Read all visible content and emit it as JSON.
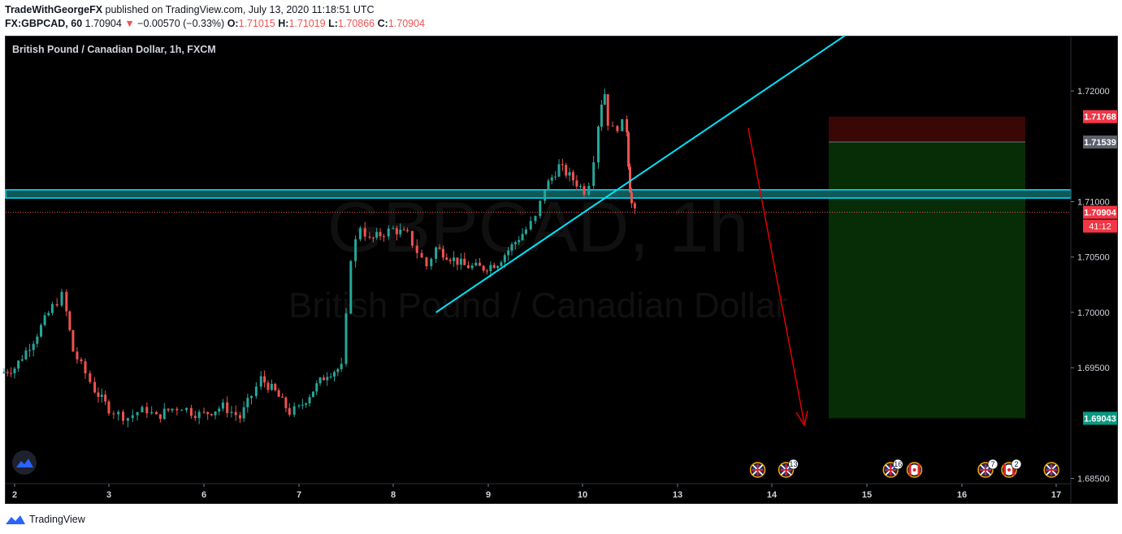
{
  "header": {
    "publisher": "TradeWithGeorgeFX",
    "published_text": "published on TradingView.com, July 13, 2020 11:18:51 UTC",
    "symbol": "FX:GBPCAD, 60",
    "last": "1.70904",
    "change": "−0.00570 (−0.33%)",
    "o_label": "O:",
    "o_value": "1.71015",
    "h_label": "H:",
    "h_value": "1.71019",
    "l_label": "L:",
    "l_value": "1.70866",
    "c_label": "C:",
    "c_value": "1.70904"
  },
  "chart": {
    "legend_title": "British Pound / Canadian Dollar, 1h, FXCM",
    "watermark_symbol": "GBPCAD, 1h",
    "watermark_name": "British Pound / Canadian Dollar",
    "countdown": "41:12"
  },
  "footer": {
    "brand": "TradingView"
  },
  "colors": {
    "up": "#26a69a",
    "down": "#ef5350",
    "trendline": "#00e5ff",
    "zone_fill": "#0e5a5a",
    "arrow": "#e00000",
    "stop_fill": "#3a0707",
    "target_fill": "#062d06",
    "price_line": "#ef5350"
  },
  "chart_data": {
    "type": "candlestick",
    "symbol": "GBPCAD",
    "interval": "1h",
    "y_ticks": [
      "1.72000",
      "1.71000",
      "1.70500",
      "1.70000",
      "1.69500",
      "1.68500"
    ],
    "x_ticks": [
      "2",
      "3",
      "6",
      "7",
      "8",
      "9",
      "10",
      "13",
      "14",
      "15",
      "16",
      "17"
    ],
    "price_badges": [
      {
        "label": "1.71768",
        "value": 1.71768,
        "color": "#f23645"
      },
      {
        "label": "1.71539",
        "value": 1.71539,
        "color": "#5d606b"
      },
      {
        "label": "1.70904",
        "value": 1.70904,
        "color": "#f23645"
      },
      {
        "label": "1.69043",
        "value": 1.69043,
        "color": "#089981"
      }
    ],
    "current_price": 1.70904,
    "resistance_zone": [
      1.7104,
      1.711
    ],
    "trade_box": {
      "entry": 1.71539,
      "stop": 1.71768,
      "target": 1.69043
    },
    "trendline": [
      {
        "t": 8.45,
        "p": 1.7
      },
      {
        "t": 13.3,
        "p": 1.7165
      }
    ],
    "event_markers": [
      {
        "t": 13.85,
        "flag": "uk",
        "count": ""
      },
      {
        "t": 14.15,
        "flag": "uk",
        "count": "13"
      },
      {
        "t": 15.25,
        "flag": "uk",
        "count": "16"
      },
      {
        "t": 15.5,
        "flag": "ca",
        "count": ""
      },
      {
        "t": 16.25,
        "flag": "uk",
        "count": "7"
      },
      {
        "t": 16.5,
        "flag": "ca",
        "count": "2"
      },
      {
        "t": 16.95,
        "flag": "uk",
        "count": ""
      }
    ],
    "close_path": [
      [
        1.85,
        1.6945
      ],
      [
        2.0,
        1.695
      ],
      [
        2.2,
        1.6975
      ],
      [
        2.4,
        1.7005
      ],
      [
        2.5,
        1.7015
      ],
      [
        2.55,
        1.7
      ],
      [
        2.62,
        1.6965
      ],
      [
        2.75,
        1.6945
      ],
      [
        2.85,
        1.693
      ],
      [
        3.0,
        1.6913
      ],
      [
        3.3,
        1.6908
      ],
      [
        3.6,
        1.6905
      ],
      [
        3.9,
        1.691
      ],
      [
        4.2,
        1.6912
      ],
      [
        4.5,
        1.6905
      ],
      [
        4.75,
        1.691
      ],
      [
        5.0,
        1.6913
      ],
      [
        5.3,
        1.6915
      ],
      [
        5.6,
        1.691
      ],
      [
        5.85,
        1.6908
      ],
      [
        6.0,
        1.6908
      ],
      [
        6.2,
        1.6915
      ],
      [
        6.38,
        1.6905
      ],
      [
        6.5,
        1.6925
      ],
      [
        6.6,
        1.694
      ],
      [
        6.75,
        1.6928
      ],
      [
        6.9,
        1.691
      ],
      [
        7.0,
        1.6913
      ],
      [
        7.15,
        1.693
      ],
      [
        7.3,
        1.6945
      ],
      [
        7.45,
        1.695
      ],
      [
        7.5,
        1.6995
      ],
      [
        7.55,
        1.705
      ],
      [
        7.65,
        1.7078
      ],
      [
        7.75,
        1.7065
      ],
      [
        7.9,
        1.7072
      ],
      [
        8.0,
        1.7075
      ],
      [
        8.15,
        1.707
      ],
      [
        8.25,
        1.7055
      ],
      [
        8.35,
        1.7042
      ],
      [
        8.45,
        1.7058
      ],
      [
        8.6,
        1.705
      ],
      [
        8.75,
        1.7042
      ],
      [
        8.95,
        1.704
      ],
      [
        9.1,
        1.7045
      ],
      [
        9.25,
        1.706
      ],
      [
        9.4,
        1.7075
      ],
      [
        9.5,
        1.7085
      ],
      [
        9.6,
        1.7112
      ],
      [
        9.75,
        1.7132
      ],
      [
        9.9,
        1.712
      ],
      [
        10.05,
        1.711
      ],
      [
        10.2,
        1.7118
      ],
      [
        10.35,
        1.714
      ],
      [
        10.5,
        1.717
      ],
      [
        10.6,
        1.719
      ],
      [
        10.7,
        1.7198
      ],
      [
        10.8,
        1.7172
      ],
      [
        10.95,
        1.7165
      ],
      [
        11.1,
        1.7168
      ],
      [
        11.25,
        1.717
      ],
      [
        11.4,
        1.7165
      ],
      [
        11.45,
        1.7135
      ],
      [
        11.5,
        1.7112
      ],
      [
        11.55,
        1.7098
      ],
      [
        11.65,
        1.709
      ]
    ]
  }
}
